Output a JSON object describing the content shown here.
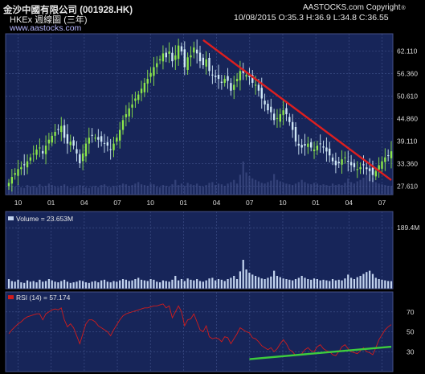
{
  "header": {
    "title": "金沙中國有限公司 (001928.HK)",
    "subtitle": "HKEx  週線圖 (三年)",
    "site": "www.aastocks.com",
    "copyright": "AASTOCKS.com Copyright",
    "copyright_mark": "®",
    "ohlc": "10/08/2015   O:35.3  H:36.9  L:34.8  C:36.55"
  },
  "colors": {
    "background": "#000000",
    "plot_background": "#172559",
    "candle_up": "#8be64a",
    "candle_down": "#cfe8f5",
    "volume": "#c2d3ee",
    "rsi_line": "#d21c1c",
    "trendline": "#dd1f1f",
    "rsi_trendline": "#3dcc3d"
  },
  "chart_data": [
    {
      "type": "candlestick",
      "title": "金沙中國有限公司 (001928.HK)",
      "frequency": "weekly",
      "period": "3 years",
      "x_tick_labels": [
        "10",
        "01",
        "04",
        "07",
        "10",
        "01",
        "04",
        "07",
        "10",
        "01",
        "04",
        "07"
      ],
      "y_tick_labels": [
        "62.110",
        "56.360",
        "50.610",
        "44.860",
        "39.110",
        "33.360",
        "27.610"
      ],
      "ylim": [
        25.5,
        66.5
      ],
      "grid": true,
      "latest": {
        "date": "10/08/2015",
        "open": 35.3,
        "high": 36.9,
        "low": 34.8,
        "close": 36.55
      },
      "closes": [
        28.5,
        30.0,
        31.0,
        32.0,
        32.5,
        33.0,
        34.0,
        35.0,
        36.0,
        37.0,
        37.5,
        36.0,
        38.0,
        39.5,
        40.5,
        41.5,
        42.0,
        43.0,
        40.0,
        38.5,
        39.0,
        38.0,
        36.0,
        33.5,
        36.0,
        38.5,
        40.0,
        40.5,
        40.0,
        39.5,
        39.0,
        38.5,
        38.0,
        37.0,
        38.5,
        40.0,
        42.0,
        44.5,
        46.0,
        47.5,
        48.5,
        50.0,
        51.0,
        52.5,
        54.0,
        55.0,
        56.5,
        58.0,
        59.0,
        60.0,
        61.5,
        60.5,
        62.0,
        59.5,
        61.0,
        63.5,
        62.0,
        58.0,
        60.5,
        61.0,
        63.0,
        61.5,
        59.5,
        58.5,
        60.0,
        57.0,
        56.0,
        55.5,
        55.0,
        54.0,
        55.0,
        54.5,
        52.0,
        53.5,
        55.0,
        57.0,
        56.5,
        56.0,
        55.5,
        54.0,
        53.5,
        52.0,
        50.0,
        48.5,
        47.0,
        46.5,
        44.5,
        45.0,
        46.0,
        47.0,
        46.0,
        44.0,
        42.0,
        39.0,
        38.0,
        37.5,
        38.0,
        38.5,
        37.5,
        37.0,
        38.0,
        38.5,
        37.5,
        36.5,
        35.5,
        34.0,
        33.0,
        33.5,
        34.5,
        35.0,
        34.0,
        33.0,
        32.5,
        32.0,
        32.5,
        33.0,
        32.0,
        31.5,
        30.5,
        31.5,
        33.0,
        34.0,
        35.0,
        35.5,
        36.55
      ],
      "trendline": {
        "from": {
          "index": 63,
          "price": 64.9
        },
        "to": {
          "index": 124,
          "price": 29.2
        }
      }
    },
    {
      "type": "bar",
      "title": "Volume",
      "legend": "Volume = 23.653M",
      "y_tick_labels": [
        "189.4M"
      ],
      "ylim": [
        0,
        240
      ],
      "values": [
        30,
        24,
        22,
        28,
        20,
        18,
        26,
        22,
        24,
        20,
        28,
        22,
        24,
        30,
        26,
        22,
        20,
        24,
        28,
        22,
        18,
        20,
        22,
        26,
        24,
        20,
        18,
        22,
        24,
        20,
        26,
        28,
        22,
        20,
        24,
        22,
        26,
        30,
        28,
        24,
        26,
        30,
        34,
        28,
        26,
        24,
        30,
        28,
        22,
        20,
        26,
        24,
        22,
        28,
        40,
        26,
        30,
        24,
        32,
        28,
        26,
        30,
        24,
        22,
        26,
        32,
        34,
        26,
        30,
        28,
        24,
        30,
        34,
        40,
        30,
        54,
        90,
        60,
        50,
        44,
        40,
        36,
        32,
        30,
        34,
        38,
        56,
        40,
        36,
        32,
        30,
        28,
        26,
        30,
        34,
        40,
        34,
        30,
        28,
        32,
        30,
        26,
        28,
        26,
        24,
        30,
        26,
        28,
        26,
        32,
        44,
        34,
        30,
        36,
        40,
        46,
        52,
        56,
        46,
        34,
        30,
        28,
        26,
        24,
        23.653
      ]
    },
    {
      "type": "line",
      "title": "RSI (14)",
      "legend": "RSI (14) = 57.174",
      "y_tick_labels": [
        "70",
        "50",
        "30"
      ],
      "ylim": [
        10,
        90
      ],
      "values": [
        48,
        52,
        55,
        58,
        60,
        63,
        65,
        66,
        67,
        68,
        68,
        62,
        68,
        70,
        72,
        73,
        72,
        74,
        62,
        55,
        58,
        54,
        46,
        38,
        48,
        58,
        62,
        62,
        60,
        56,
        54,
        52,
        50,
        46,
        52,
        57,
        62,
        66,
        68,
        69,
        70,
        71,
        72,
        73,
        74,
        74,
        75,
        76,
        76,
        77,
        78,
        74,
        76,
        64,
        70,
        76,
        70,
        56,
        62,
        63,
        68,
        60,
        52,
        50,
        56,
        45,
        43,
        44,
        43,
        40,
        45,
        44,
        38,
        43,
        48,
        54,
        52,
        50,
        49,
        44,
        43,
        40,
        36,
        34,
        32,
        34,
        30,
        33,
        38,
        42,
        38,
        32,
        30,
        26,
        27,
        28,
        32,
        34,
        31,
        30,
        35,
        37,
        33,
        31,
        30,
        27,
        26,
        30,
        35,
        37,
        33,
        30,
        29,
        28,
        31,
        34,
        30,
        29,
        27,
        34,
        42,
        47,
        52,
        55,
        57.174
      ],
      "trendline": {
        "from": {
          "index": 78,
          "value": 22.5
        },
        "to": {
          "index": 124,
          "value": 35.0
        }
      }
    }
  ]
}
